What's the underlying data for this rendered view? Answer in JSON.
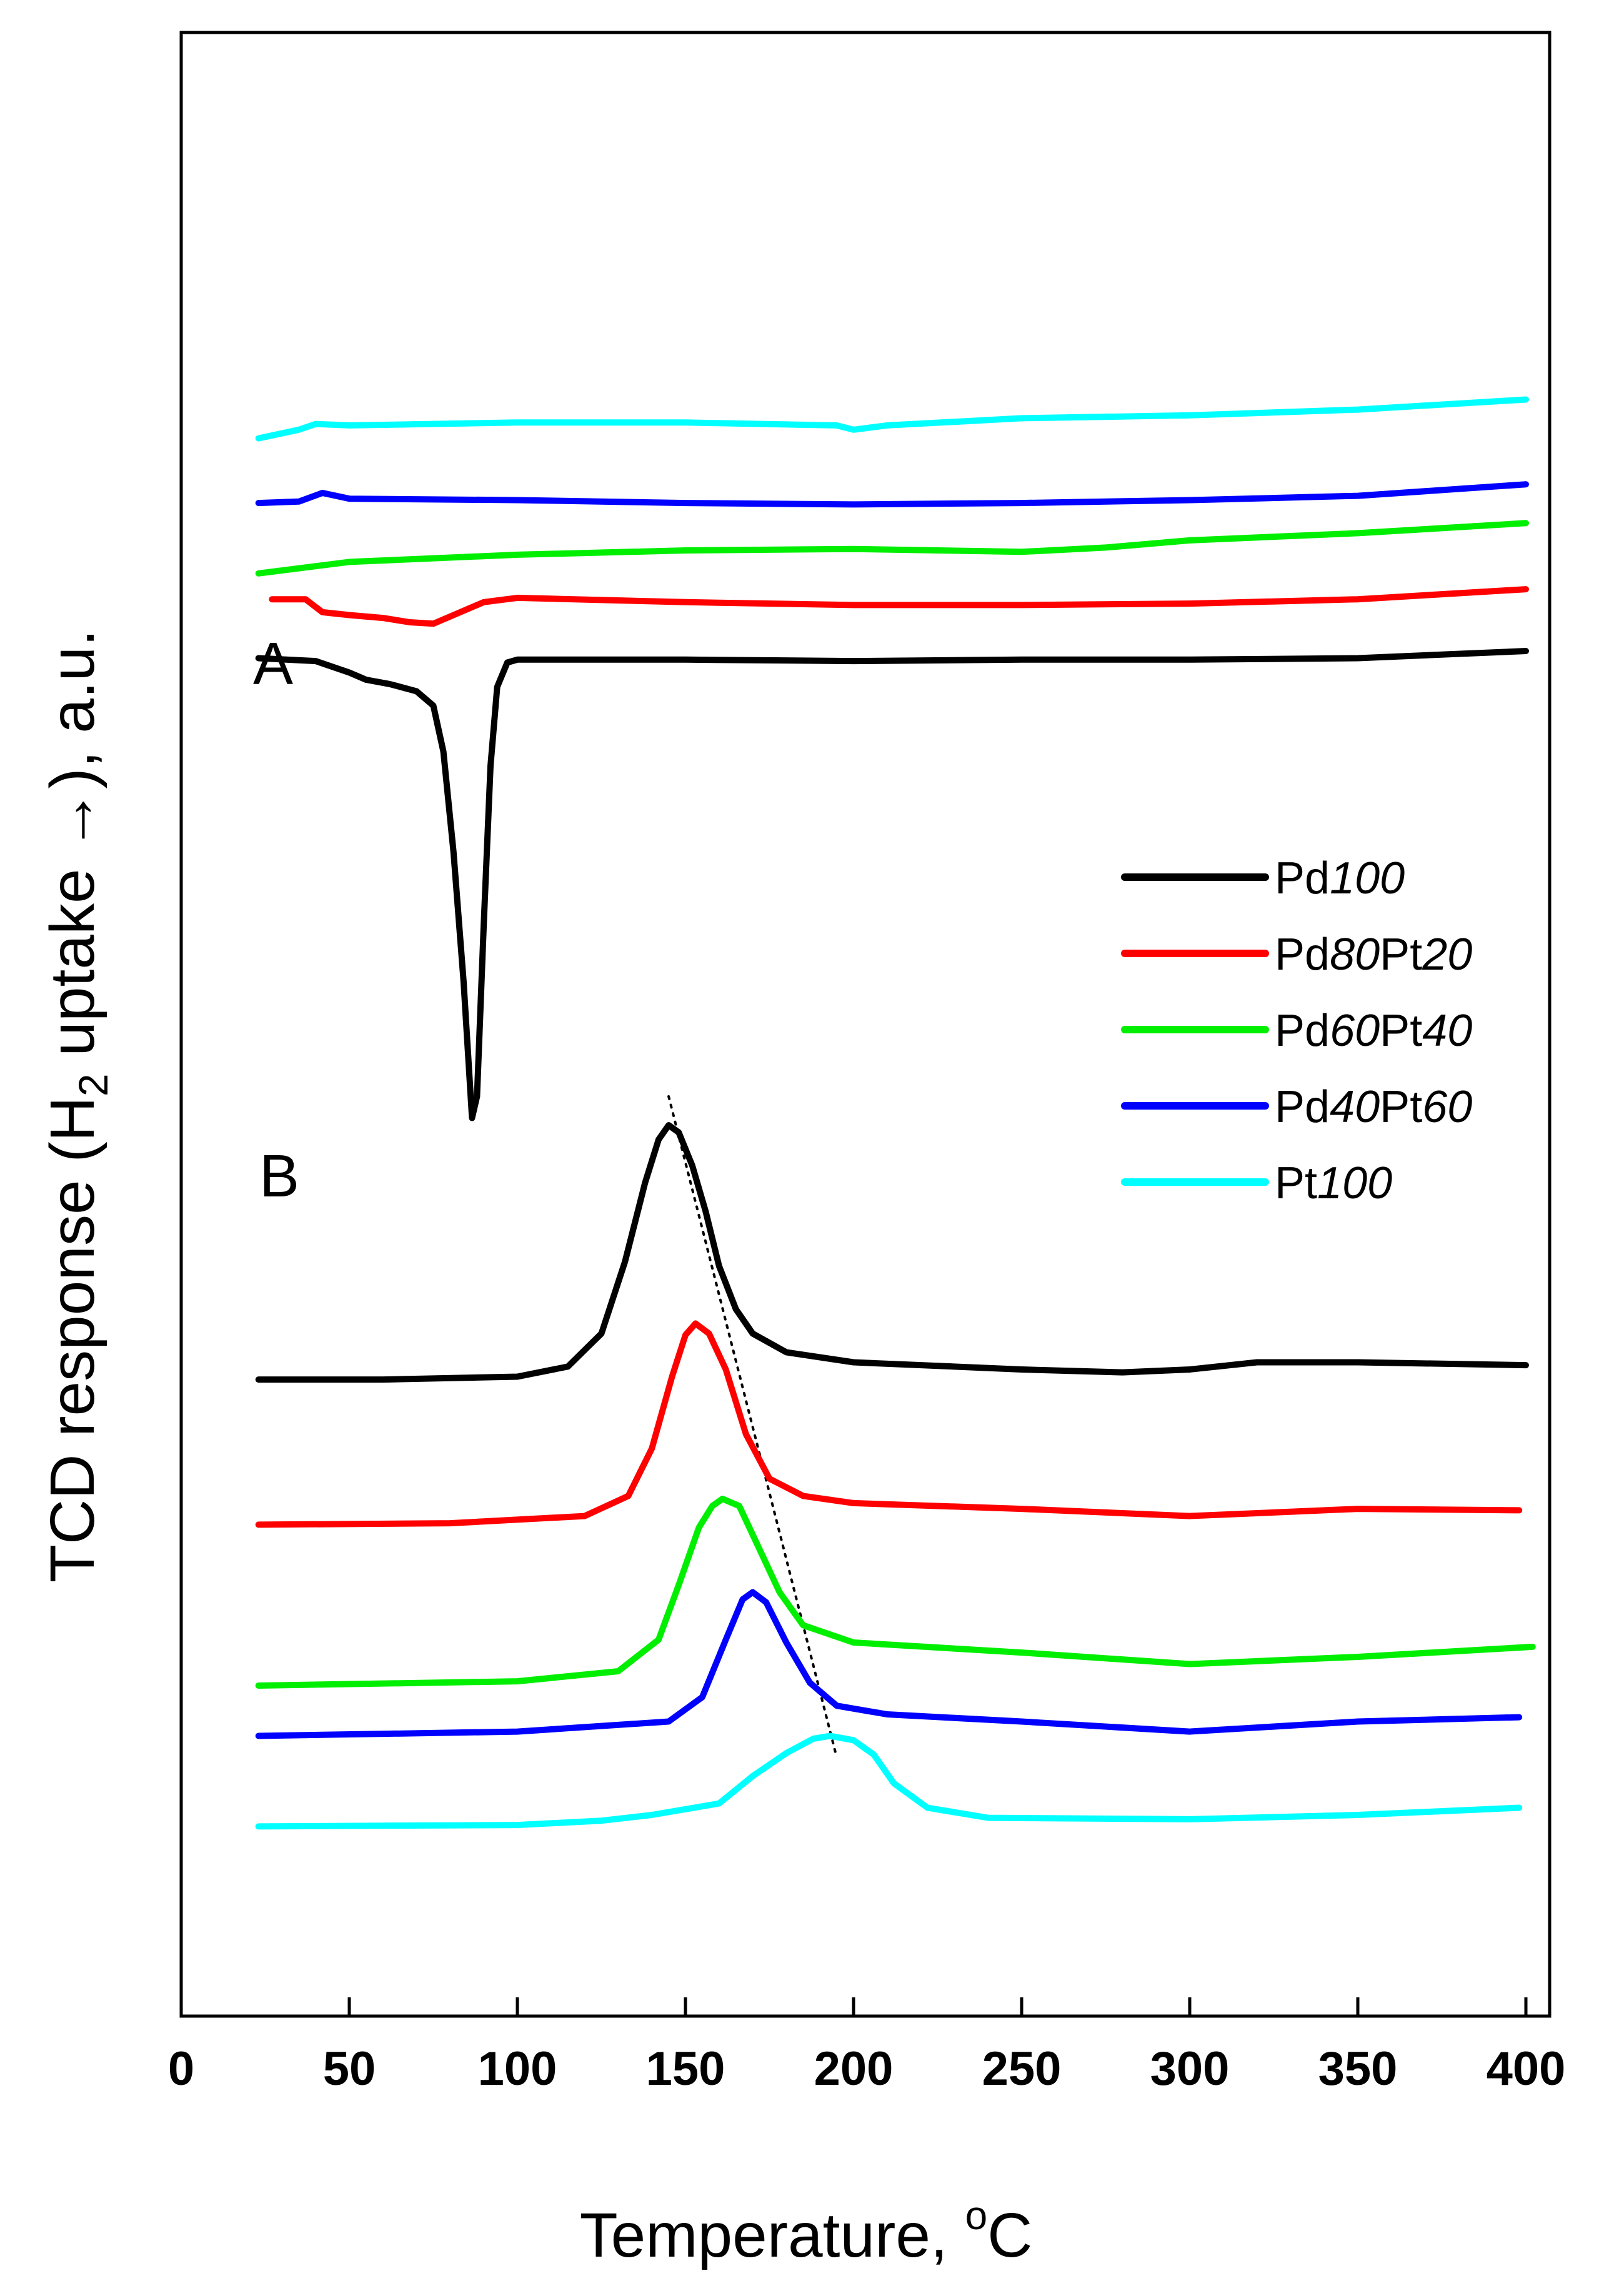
{
  "chart_data": {
    "type": "line",
    "title": "",
    "xlabel": "Temperature, °C",
    "xlabel_parts": {
      "main": "Temperature, ",
      "sup": "o",
      "unit": "C"
    },
    "ylabel": "TCD response (H₂ uptake →), a.u.",
    "ylabel_parts": {
      "pre": "TCD response (H",
      "sub": "2",
      "post": " uptake →), a.u."
    },
    "xlim": [
      0,
      405
    ],
    "x_ticks": [
      0,
      50,
      100,
      150,
      200,
      250,
      300,
      350,
      400
    ],
    "y_ticks_shown": false,
    "legend_placement": "center-right",
    "panels": [
      {
        "label": "A",
        "series": [
          {
            "name": "Pd100",
            "color": "#000000",
            "points": [
              [
                23,
                9.45
              ],
              [
                40,
                9.43
              ],
              [
                50,
                9.35
              ],
              [
                55,
                9.3
              ],
              [
                62,
                9.27
              ],
              [
                70,
                9.22
              ],
              [
                75,
                9.12
              ],
              [
                78,
                8.8
              ],
              [
                81,
                8.1
              ],
              [
                84,
                7.2
              ],
              [
                86.5,
                6.25
              ],
              [
                88,
                6.4
              ],
              [
                90,
                7.6
              ],
              [
                92,
                8.7
              ],
              [
                94,
                9.25
              ],
              [
                97,
                9.42
              ],
              [
                100,
                9.44
              ],
              [
                150,
                9.44
              ],
              [
                200,
                9.43
              ],
              [
                250,
                9.44
              ],
              [
                300,
                9.44
              ],
              [
                350,
                9.45
              ],
              [
                400,
                9.5
              ]
            ]
          },
          {
            "name": "Pd80Pt20",
            "color": "#ff0000",
            "points": [
              [
                27,
                9.86
              ],
              [
                37,
                9.86
              ],
              [
                42,
                9.77
              ],
              [
                50,
                9.75
              ],
              [
                60,
                9.73
              ],
              [
                68,
                9.7
              ],
              [
                75,
                9.69
              ],
              [
                82,
                9.76
              ],
              [
                90,
                9.84
              ],
              [
                100,
                9.87
              ],
              [
                150,
                9.84
              ],
              [
                200,
                9.82
              ],
              [
                250,
                9.82
              ],
              [
                300,
                9.83
              ],
              [
                350,
                9.86
              ],
              [
                400,
                9.93
              ]
            ]
          },
          {
            "name": "Pd60Pt40",
            "color": "#00ee00",
            "points": [
              [
                23,
                10.04
              ],
              [
                50,
                10.12
              ],
              [
                100,
                10.17
              ],
              [
                150,
                10.2
              ],
              [
                200,
                10.21
              ],
              [
                250,
                10.19
              ],
              [
                275,
                10.22
              ],
              [
                300,
                10.27
              ],
              [
                350,
                10.32
              ],
              [
                400,
                10.39
              ]
            ]
          },
          {
            "name": "Pd40Pt60",
            "color": "#0000ff",
            "points": [
              [
                23,
                10.53
              ],
              [
                35,
                10.54
              ],
              [
                42,
                10.6
              ],
              [
                50,
                10.56
              ],
              [
                100,
                10.55
              ],
              [
                150,
                10.53
              ],
              [
                200,
                10.52
              ],
              [
                250,
                10.53
              ],
              [
                300,
                10.55
              ],
              [
                350,
                10.58
              ],
              [
                400,
                10.66
              ]
            ]
          },
          {
            "name": "Pt100",
            "color": "#00ffff",
            "points": [
              [
                23,
                10.98
              ],
              [
                35,
                11.04
              ],
              [
                40,
                11.08
              ],
              [
                50,
                11.07
              ],
              [
                100,
                11.09
              ],
              [
                150,
                11.09
              ],
              [
                195,
                11.07
              ],
              [
                200,
                11.04
              ],
              [
                210,
                11.07
              ],
              [
                250,
                11.12
              ],
              [
                300,
                11.14
              ],
              [
                350,
                11.18
              ],
              [
                400,
                11.25
              ]
            ]
          }
        ]
      },
      {
        "label": "B",
        "series": [
          {
            "name": "Pd100",
            "color": "#000000",
            "points": [
              [
                23,
                4.43
              ],
              [
                60,
                4.43
              ],
              [
                100,
                4.45
              ],
              [
                115,
                4.52
              ],
              [
                125,
                4.75
              ],
              [
                132,
                5.25
              ],
              [
                138,
                5.8
              ],
              [
                142,
                6.1
              ],
              [
                145,
                6.2
              ],
              [
                148,
                6.15
              ],
              [
                152,
                5.92
              ],
              [
                156,
                5.6
              ],
              [
                160,
                5.22
              ],
              [
                165,
                4.92
              ],
              [
                170,
                4.75
              ],
              [
                180,
                4.62
              ],
              [
                200,
                4.55
              ],
              [
                250,
                4.5
              ],
              [
                280,
                4.48
              ],
              [
                300,
                4.5
              ],
              [
                320,
                4.55
              ],
              [
                350,
                4.55
              ],
              [
                400,
                4.53
              ]
            ]
          },
          {
            "name": "Pd80Pt20",
            "color": "#ff0000",
            "points": [
              [
                23,
                3.42
              ],
              [
                80,
                3.43
              ],
              [
                120,
                3.48
              ],
              [
                133,
                3.62
              ],
              [
                140,
                3.95
              ],
              [
                146,
                4.45
              ],
              [
                150,
                4.74
              ],
              [
                153,
                4.82
              ],
              [
                157,
                4.75
              ],
              [
                162,
                4.5
              ],
              [
                168,
                4.05
              ],
              [
                175,
                3.74
              ],
              [
                185,
                3.62
              ],
              [
                200,
                3.57
              ],
              [
                250,
                3.53
              ],
              [
                300,
                3.48
              ],
              [
                350,
                3.53
              ],
              [
                398,
                3.52
              ]
            ]
          },
          {
            "name": "Pd60Pt40",
            "color": "#00ee00",
            "points": [
              [
                23,
                2.3
              ],
              [
                100,
                2.33
              ],
              [
                130,
                2.4
              ],
              [
                142,
                2.62
              ],
              [
                148,
                3.0
              ],
              [
                154,
                3.4
              ],
              [
                158,
                3.55
              ],
              [
                161,
                3.6
              ],
              [
                166,
                3.55
              ],
              [
                172,
                3.25
              ],
              [
                178,
                2.95
              ],
              [
                185,
                2.72
              ],
              [
                200,
                2.6
              ],
              [
                250,
                2.53
              ],
              [
                300,
                2.45
              ],
              [
                350,
                2.5
              ],
              [
                402,
                2.57
              ]
            ]
          },
          {
            "name": "Pd40Pt60",
            "color": "#0000ff",
            "points": [
              [
                23,
                1.95
              ],
              [
                100,
                1.98
              ],
              [
                145,
                2.05
              ],
              [
                155,
                2.22
              ],
              [
                162,
                2.62
              ],
              [
                167,
                2.9
              ],
              [
                170,
                2.95
              ],
              [
                174,
                2.88
              ],
              [
                180,
                2.6
              ],
              [
                187,
                2.32
              ],
              [
                195,
                2.16
              ],
              [
                210,
                2.1
              ],
              [
                250,
                2.05
              ],
              [
                300,
                1.98
              ],
              [
                350,
                2.05
              ],
              [
                398,
                2.08
              ]
            ]
          },
          {
            "name": "Pt100",
            "color": "#00ffff",
            "points": [
              [
                23,
                1.32
              ],
              [
                100,
                1.33
              ],
              [
                125,
                1.36
              ],
              [
                140,
                1.4
              ],
              [
                160,
                1.48
              ],
              [
                170,
                1.67
              ],
              [
                180,
                1.83
              ],
              [
                188,
                1.93
              ],
              [
                193,
                1.95
              ],
              [
                200,
                1.92
              ],
              [
                206,
                1.82
              ],
              [
                212,
                1.62
              ],
              [
                222,
                1.45
              ],
              [
                240,
                1.38
              ],
              [
                300,
                1.37
              ],
              [
                350,
                1.4
              ],
              [
                398,
                1.45
              ]
            ]
          }
        ]
      }
    ],
    "guide_line": {
      "style": "dotted",
      "points": [
        [
          145,
          6.4
        ],
        [
          195,
          1.8
        ]
      ]
    },
    "legend": [
      {
        "name_prefix": "Pd",
        "name_italic": "100",
        "name_mid": "",
        "name_italic2": "",
        "color": "#000000"
      },
      {
        "name_prefix": "Pd",
        "name_italic": "80",
        "name_mid": "Pt",
        "name_italic2": "20",
        "color": "#ff0000"
      },
      {
        "name_prefix": "Pd",
        "name_italic": "60",
        "name_mid": "Pt",
        "name_italic2": "40",
        "color": "#00ee00"
      },
      {
        "name_prefix": "Pd",
        "name_italic": "40",
        "name_mid": "Pt",
        "name_italic2": "60",
        "color": "#0000ff"
      },
      {
        "name_prefix": "Pt",
        "name_italic": "100",
        "name_mid": "",
        "name_italic2": "",
        "color": "#00ffff"
      }
    ]
  }
}
